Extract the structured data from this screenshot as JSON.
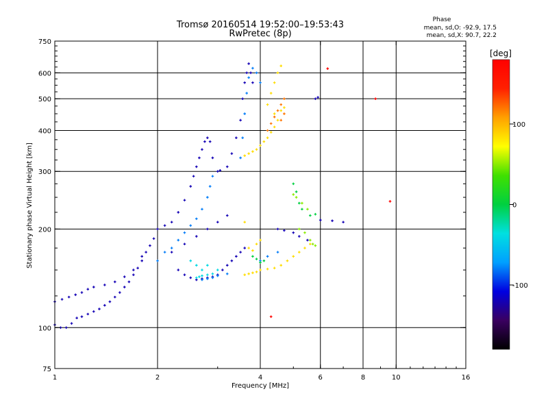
{
  "chart_data": {
    "type": "scatter",
    "title": "Tromsø 20160514 19:52:00–19:53:43",
    "subtitle": "RwPretec (8p)",
    "xlabel": "Frequency [MHz]",
    "ylabel": "Stationary phase Virtual Height [km]",
    "x_scale": "log",
    "y_scale": "log",
    "xlim": [
      1,
      16
    ],
    "ylim": [
      75,
      750
    ],
    "x_ticks": [
      1,
      2,
      4,
      6,
      8,
      10,
      16
    ],
    "x_tick_labels": [
      "1",
      "2",
      "4",
      "6",
      "8",
      "10",
      "16"
    ],
    "x_grid": [
      1,
      2,
      4,
      6,
      8,
      10
    ],
    "y_ticks": [
      75,
      100,
      200,
      300,
      400,
      500,
      600,
      750
    ],
    "y_tick_labels": [
      "75",
      "100",
      "200",
      "300",
      "400",
      "500",
      "600",
      "750"
    ],
    "y_grid": [
      100,
      200,
      300,
      400,
      500,
      600
    ],
    "grid": true,
    "stats": {
      "heading": "Phase",
      "lines": [
        "mean, sd,O: -92.9, 17.5",
        "mean, sd,X:  90.7, 22.2"
      ]
    },
    "colorbar": {
      "label": "[deg]",
      "range": [
        -180,
        180
      ],
      "ticks": [
        100,
        0,
        -100
      ],
      "tick_labels": [
        "100",
        "0",
        "-100"
      ],
      "colormap": [
        "#000000",
        "#3a0060",
        "#0000e0",
        "#00a0ff",
        "#00e0e0",
        "#00d040",
        "#40e000",
        "#ffff00",
        "#ffa000",
        "#ff2000",
        "#ff0000"
      ]
    },
    "series": [
      {
        "phase": -120,
        "points": [
          [
            1.0,
            102
          ],
          [
            1.04,
            100
          ],
          [
            1.08,
            100
          ],
          [
            1.12,
            103
          ],
          [
            1.16,
            107
          ],
          [
            1.2,
            108
          ],
          [
            1.25,
            110
          ],
          [
            1.3,
            112
          ],
          [
            1.35,
            114
          ],
          [
            1.4,
            117
          ],
          [
            1.45,
            120
          ],
          [
            1.5,
            124
          ],
          [
            1.55,
            128
          ],
          [
            1.6,
            133
          ],
          [
            1.65,
            138
          ],
          [
            1.7,
            145
          ],
          [
            1.75,
            152
          ],
          [
            1.8,
            160
          ],
          [
            1.85,
            170
          ],
          [
            1.9,
            178
          ],
          [
            1.95,
            187
          ],
          [
            1.0,
            120
          ],
          [
            1.05,
            122
          ],
          [
            1.1,
            124
          ],
          [
            1.15,
            126
          ],
          [
            1.2,
            128
          ],
          [
            1.25,
            131
          ],
          [
            1.3,
            133
          ],
          [
            1.4,
            135
          ],
          [
            1.5,
            138
          ],
          [
            1.6,
            143
          ],
          [
            1.7,
            150
          ],
          [
            1.8,
            165
          ],
          [
            2.0,
            200
          ],
          [
            2.1,
            205
          ],
          [
            2.2,
            210
          ],
          [
            2.3,
            225
          ],
          [
            2.4,
            245
          ],
          [
            2.5,
            270
          ],
          [
            2.55,
            290
          ],
          [
            2.6,
            310
          ],
          [
            2.65,
            330
          ],
          [
            2.7,
            350
          ],
          [
            2.75,
            370
          ],
          [
            2.8,
            380
          ],
          [
            2.85,
            370
          ],
          [
            2.9,
            330
          ],
          [
            3.0,
            300
          ],
          [
            3.05,
            302
          ],
          [
            3.2,
            310
          ],
          [
            3.3,
            340
          ],
          [
            3.4,
            380
          ],
          [
            3.5,
            430
          ],
          [
            3.55,
            500
          ],
          [
            3.6,
            560
          ],
          [
            3.65,
            600
          ],
          [
            3.7,
            640
          ],
          [
            3.75,
            600
          ],
          [
            3.8,
            560
          ],
          [
            2.3,
            150
          ],
          [
            2.4,
            145
          ],
          [
            2.5,
            142
          ],
          [
            2.6,
            140
          ],
          [
            2.7,
            141
          ],
          [
            2.8,
            142
          ],
          [
            2.9,
            143
          ],
          [
            3.0,
            145
          ],
          [
            3.1,
            150
          ],
          [
            3.2,
            155
          ],
          [
            3.3,
            160
          ],
          [
            3.4,
            165
          ],
          [
            3.5,
            170
          ],
          [
            3.6,
            175
          ],
          [
            2.2,
            170
          ],
          [
            2.4,
            180
          ],
          [
            2.6,
            190
          ],
          [
            2.8,
            200
          ],
          [
            3.0,
            210
          ],
          [
            3.2,
            220
          ],
          [
            4.5,
            200
          ],
          [
            4.7,
            198
          ],
          [
            5.0,
            195
          ],
          [
            5.2,
            190
          ],
          [
            5.5,
            185
          ],
          [
            6.0,
            213
          ],
          [
            6.5,
            212
          ],
          [
            7.0,
            210
          ],
          [
            5.8,
            500
          ],
          [
            5.9,
            505
          ]
        ]
      },
      {
        "phase": -80,
        "points": [
          [
            2.0,
            160
          ],
          [
            2.1,
            170
          ],
          [
            2.2,
            175
          ],
          [
            2.3,
            185
          ],
          [
            2.4,
            195
          ],
          [
            2.5,
            205
          ],
          [
            2.6,
            215
          ],
          [
            2.7,
            230
          ],
          [
            2.8,
            250
          ],
          [
            2.85,
            270
          ],
          [
            2.9,
            290
          ],
          [
            3.5,
            330
          ],
          [
            3.55,
            380
          ],
          [
            3.6,
            450
          ],
          [
            3.65,
            520
          ],
          [
            3.7,
            580
          ],
          [
            3.8,
            620
          ],
          [
            3.9,
            600
          ],
          [
            4.0,
            560
          ],
          [
            2.7,
            140
          ],
          [
            2.8,
            141
          ],
          [
            2.9,
            142
          ],
          [
            3.0,
            144
          ],
          [
            3.2,
            146
          ],
          [
            4.0,
            160
          ],
          [
            4.2,
            165
          ],
          [
            4.5,
            170
          ]
        ]
      },
      {
        "phase": -40,
        "points": [
          [
            2.6,
            142
          ],
          [
            2.65,
            143
          ],
          [
            2.7,
            144
          ],
          [
            2.8,
            145
          ],
          [
            2.9,
            146
          ],
          [
            2.7,
            150
          ],
          [
            2.6,
            155
          ],
          [
            2.5,
            160
          ],
          [
            2.8,
            155
          ],
          [
            3.0,
            150
          ]
        ]
      },
      {
        "phase": 0,
        "points": [
          [
            3.8,
            165
          ],
          [
            3.9,
            162
          ],
          [
            4.0,
            158
          ],
          [
            4.1,
            160
          ],
          [
            5.0,
            275
          ],
          [
            5.1,
            260
          ],
          [
            5.2,
            240
          ],
          [
            5.3,
            230
          ],
          [
            5.6,
            220
          ],
          [
            5.8,
            222
          ]
        ]
      },
      {
        "phase": 50,
        "points": [
          [
            5.0,
            255
          ],
          [
            5.1,
            250
          ],
          [
            5.3,
            240
          ],
          [
            5.5,
            230
          ],
          [
            5.2,
            200
          ],
          [
            5.4,
            195
          ],
          [
            5.6,
            185
          ],
          [
            5.7,
            180
          ],
          [
            5.8,
            178
          ]
        ]
      },
      {
        "phase": 85,
        "points": [
          [
            3.6,
            145
          ],
          [
            3.7,
            146
          ],
          [
            3.8,
            147
          ],
          [
            3.9,
            148
          ],
          [
            4.0,
            150
          ],
          [
            4.2,
            151
          ],
          [
            4.4,
            152
          ],
          [
            4.6,
            155
          ],
          [
            4.8,
            160
          ],
          [
            5.0,
            165
          ],
          [
            5.2,
            170
          ],
          [
            5.4,
            175
          ],
          [
            5.6,
            180
          ],
          [
            3.6,
            335
          ],
          [
            3.7,
            340
          ],
          [
            3.8,
            345
          ],
          [
            3.9,
            350
          ],
          [
            4.0,
            360
          ],
          [
            4.1,
            370
          ],
          [
            4.2,
            380
          ],
          [
            4.3,
            395
          ],
          [
            4.4,
            410
          ],
          [
            4.5,
            430
          ],
          [
            4.2,
            480
          ],
          [
            4.3,
            520
          ],
          [
            4.4,
            560
          ],
          [
            4.5,
            600
          ],
          [
            4.6,
            630
          ],
          [
            4.4,
            450
          ],
          [
            4.6,
            460
          ],
          [
            4.7,
            470
          ],
          [
            3.7,
            175
          ],
          [
            3.8,
            172
          ],
          [
            3.9,
            180
          ],
          [
            4.0,
            185
          ],
          [
            3.6,
            210
          ]
        ]
      },
      {
        "phase": 120,
        "points": [
          [
            4.2,
            400
          ],
          [
            4.3,
            420
          ],
          [
            4.4,
            440
          ],
          [
            4.5,
            460
          ],
          [
            4.6,
            480
          ],
          [
            4.7,
            500
          ],
          [
            4.6,
            430
          ],
          [
            4.7,
            450
          ]
        ]
      },
      {
        "phase": 175,
        "points": [
          [
            4.3,
            108
          ],
          [
            6.3,
            618
          ],
          [
            8.7,
            500
          ],
          [
            9.6,
            243
          ]
        ]
      }
    ]
  }
}
